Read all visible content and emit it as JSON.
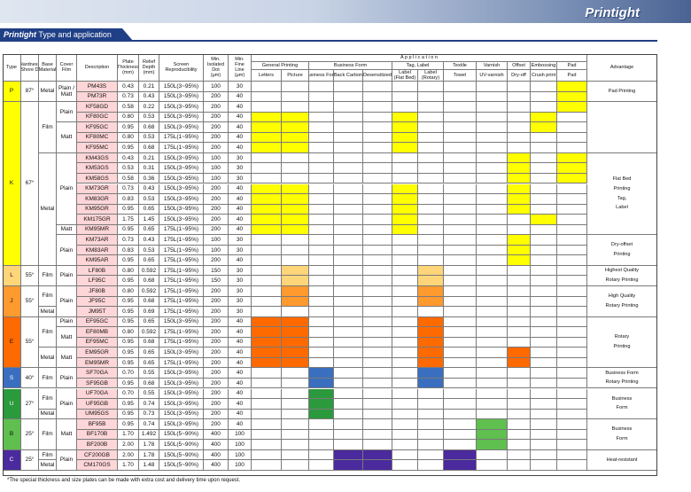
{
  "brand": "Printight",
  "title_suffix": "Type and application",
  "headers": {
    "type": "Type",
    "hardness": "Hardness\n(Shore D)",
    "base": "Base\nMaterial",
    "cover": "Cover\nFilm",
    "description": "Description",
    "thickness": "Plate\nThickness\n(mm)",
    "relief": "Relief\nDepth\n(mm)",
    "screen": "Screen\nReproducibility",
    "dot": "Min.\nIsolated\nDot\n(μm)",
    "line": "Min.\nFine\nLine\n(μm)",
    "application": "A p p l i c a t i o n",
    "advantage": "Advantage",
    "groups": [
      "General Printing",
      "Business Form",
      "Tag, Label",
      "Textile",
      "Varnish",
      "Offset",
      "Embossing",
      "Pad"
    ],
    "subs": [
      "Letters",
      "Picture",
      "Business Form",
      "Back Carbon",
      "Desensitized",
      "Label\n(Flat Bed)",
      "Label\n(Rotary)",
      "Towel",
      "UV-varnish",
      "Dry-off",
      "Crush print",
      "Pad"
    ]
  },
  "colors": {
    "yellow": "#ffff00",
    "lightorange": "#ffd57a",
    "orange": "#ff9a2e",
    "deeporange": "#ff6a00",
    "blue": "#3a6fc0",
    "green": "#2b9a3c",
    "lightgreen": "#5fbf4f",
    "purple": "#4a2a9c",
    "pink": "#ffd6d8"
  },
  "types": [
    {
      "label": "P",
      "hard": "87°",
      "rows": [
        0,
        1
      ],
      "color": "#ffff00"
    },
    {
      "label": "K",
      "hard": "67°",
      "rows": [
        2,
        17
      ],
      "color": "#ffff00"
    },
    {
      "label": "L",
      "hard": "55°",
      "rows": [
        18,
        19
      ],
      "color": "#ffd57a"
    },
    {
      "label": "J",
      "hard": "55°",
      "rows": [
        20,
        22
      ],
      "color": "#ff9a2e"
    },
    {
      "label": "E",
      "hard": "55°",
      "rows": [
        23,
        27
      ],
      "color": "#ff6a00"
    },
    {
      "label": "S",
      "hard": "40°",
      "rows": [
        28,
        29
      ],
      "color": "#3a6fc0"
    },
    {
      "label": "U",
      "hard": "27°",
      "rows": [
        30,
        32
      ],
      "color": "#2b9a3c"
    },
    {
      "label": "B",
      "hard": "25°",
      "rows": [
        33,
        35
      ],
      "color": "#5fbf4f"
    },
    {
      "label": "C",
      "hard": "25°",
      "rows": [
        36,
        37
      ],
      "color": "#4a2a9c"
    }
  ],
  "base_groups": [
    {
      "text": "Metal",
      "rows": [
        0,
        1
      ]
    },
    {
      "text": "Film",
      "rows": [
        2,
        6
      ]
    },
    {
      "text": "Metal",
      "rows": [
        7,
        17
      ]
    },
    {
      "text": "Film",
      "rows": [
        18,
        19
      ]
    },
    {
      "text": "Film",
      "rows": [
        20,
        21
      ]
    },
    {
      "text": "Metal",
      "rows": [
        22,
        22
      ]
    },
    {
      "text": "Film",
      "rows": [
        23,
        25
      ]
    },
    {
      "text": "Metal",
      "rows": [
        26,
        27
      ]
    },
    {
      "text": "Film",
      "rows": [
        28,
        29
      ]
    },
    {
      "text": "Film",
      "rows": [
        30,
        31
      ]
    },
    {
      "text": "Metal",
      "rows": [
        32,
        32
      ]
    },
    {
      "text": "Film",
      "rows": [
        33,
        35
      ]
    },
    {
      "text": "Film",
      "rows": [
        36,
        36
      ]
    },
    {
      "text": "Metal",
      "rows": [
        37,
        37
      ]
    }
  ],
  "cover_groups": [
    {
      "text": "Plain /\nMatt",
      "rows": [
        0,
        1
      ]
    },
    {
      "text": "Plain",
      "rows": [
        2,
        3
      ]
    },
    {
      "text": "Matt",
      "rows": [
        4,
        6
      ]
    },
    {
      "text": "Plain",
      "rows": [
        7,
        13
      ]
    },
    {
      "text": "Matt",
      "rows": [
        14,
        14
      ]
    },
    {
      "text": "Plain",
      "rows": [
        15,
        17
      ]
    },
    {
      "text": "Plain",
      "rows": [
        18,
        19
      ]
    },
    {
      "text": "Plain",
      "rows": [
        20,
        22
      ]
    },
    {
      "text": "Plain",
      "rows": [
        23,
        23
      ]
    },
    {
      "text": "Matt",
      "rows": [
        24,
        25
      ]
    },
    {
      "text": "Matt",
      "rows": [
        26,
        27
      ]
    },
    {
      "text": "Plain",
      "rows": [
        28,
        29
      ]
    },
    {
      "text": "Plain",
      "rows": [
        30,
        32
      ]
    },
    {
      "text": "Matt",
      "rows": [
        33,
        35
      ]
    },
    {
      "text": "Plain",
      "rows": [
        36,
        37
      ]
    }
  ],
  "advantage_groups": [
    {
      "text": "Pad Printing",
      "rows": [
        0,
        1
      ]
    },
    {
      "text": "",
      "rows": [
        2,
        6
      ]
    },
    {
      "text": "Flat Bed\nPrinting\nTag,\nLabel",
      "rows": [
        7,
        14
      ]
    },
    {
      "text": "Dry-offset\nPrinting",
      "rows": [
        15,
        17
      ]
    },
    {
      "text": "Highest Quality\nRotary Printing",
      "rows": [
        18,
        19
      ]
    },
    {
      "text": "High Quality\nRotary Printing",
      "rows": [
        20,
        22
      ]
    },
    {
      "text": "Rotary\nPrinting",
      "rows": [
        23,
        27
      ]
    },
    {
      "text": "Business Form\nRotary Printing",
      "rows": [
        28,
        29
      ]
    },
    {
      "text": "Business\nForm",
      "rows": [
        30,
        32
      ]
    },
    {
      "text": "Business\nForm",
      "rows": [
        33,
        35
      ]
    },
    {
      "text": "Heat-resistant",
      "rows": [
        36,
        37
      ]
    }
  ],
  "rows": [
    {
      "d": "PM43S",
      "t": "0.43",
      "r": "0.21",
      "s": "150L(3~95%)",
      "dot": "100",
      "line": "30",
      "fill": [
        11
      ]
    },
    {
      "d": "PM73R",
      "t": "0.73",
      "r": "0.43",
      "s": "150L(3~95%)",
      "dot": "200",
      "line": "40",
      "fill": [
        11
      ]
    },
    {
      "d": "KF58GD",
      "t": "0.58",
      "r": "0.22",
      "s": "150L(3~95%)",
      "dot": "200",
      "line": "40",
      "fill": [
        11
      ]
    },
    {
      "d": "KF80GC",
      "t": "0.80",
      "r": "0.53",
      "s": "150L(3~95%)",
      "dot": "200",
      "line": "40",
      "fill": [
        0,
        1,
        5,
        10
      ]
    },
    {
      "d": "KF95GC",
      "t": "0.95",
      "r": "0.68",
      "s": "150L(3~95%)",
      "dot": "200",
      "line": "40",
      "fill": [
        0,
        1,
        5,
        10
      ]
    },
    {
      "d": "KF80MC",
      "t": "0.80",
      "r": "0.53",
      "s": "175L(1~95%)",
      "dot": "200",
      "line": "40",
      "fill": [
        0,
        1,
        5
      ]
    },
    {
      "d": "KF95MC",
      "t": "0.95",
      "r": "0.68",
      "s": "175L(1~95%)",
      "dot": "200",
      "line": "40",
      "fill": [
        0,
        1,
        5
      ]
    },
    {
      "d": "KM43GS",
      "t": "0.43",
      "r": "0.21",
      "s": "150L(3~95%)",
      "dot": "100",
      "line": "30",
      "fill": [
        9,
        11
      ]
    },
    {
      "d": "KM53GS",
      "t": "0.53",
      "r": "0.31",
      "s": "150L(3~95%)",
      "dot": "100",
      "line": "30",
      "fill": [
        9,
        11
      ]
    },
    {
      "d": "KM58GS",
      "t": "0.58",
      "r": "0.36",
      "s": "150L(3~95%)",
      "dot": "100",
      "line": "30",
      "fill": [
        9,
        11
      ]
    },
    {
      "d": "KM73GR",
      "t": "0.73",
      "r": "0.43",
      "s": "150L(3~95%)",
      "dot": "200",
      "line": "40",
      "fill": [
        0,
        1,
        5,
        9
      ]
    },
    {
      "d": "KM83GR",
      "t": "0.83",
      "r": "0.53",
      "s": "150L(3~95%)",
      "dot": "200",
      "line": "40",
      "fill": [
        0,
        1,
        5,
        9
      ]
    },
    {
      "d": "KM95GR",
      "t": "0.95",
      "r": "0.65",
      "s": "150L(3~95%)",
      "dot": "200",
      "line": "40",
      "fill": [
        0,
        1,
        5,
        9
      ]
    },
    {
      "d": "KM175GR",
      "t": "1.75",
      "r": "1.45",
      "s": "150L(3~95%)",
      "dot": "200",
      "line": "40",
      "fill": [
        0,
        1,
        5,
        10
      ]
    },
    {
      "d": "KM95MR",
      "t": "0.95",
      "r": "0.65",
      "s": "175L(1~95%)",
      "dot": "200",
      "line": "40",
      "fill": [
        0,
        1,
        5
      ]
    },
    {
      "d": "KM73AR",
      "t": "0.73",
      "r": "0.43",
      "s": "175L(1~95%)",
      "dot": "100",
      "line": "30",
      "fill": [
        9
      ]
    },
    {
      "d": "KM83AR",
      "t": "0.83",
      "r": "0.53",
      "s": "175L(1~95%)",
      "dot": "100",
      "line": "30",
      "fill": [
        9
      ]
    },
    {
      "d": "KM95AR",
      "t": "0.95",
      "r": "0.65",
      "s": "175L(1~95%)",
      "dot": "200",
      "line": "40",
      "fill": [
        9
      ]
    },
    {
      "d": "LF80B",
      "t": "0.80",
      "r": "0.592",
      "s": "175L(1~95%)",
      "dot": "150",
      "line": "30",
      "fill": [
        1,
        6
      ]
    },
    {
      "d": "LF95C",
      "t": "0.95",
      "r": "0.68",
      "s": "175L(1~95%)",
      "dot": "150",
      "line": "30",
      "fill": [
        1,
        6
      ]
    },
    {
      "d": "JF80B",
      "t": "0.80",
      "r": "0.592",
      "s": "175L(1~95%)",
      "dot": "200",
      "line": "30",
      "fill": [
        1,
        6
      ]
    },
    {
      "d": "JF95C",
      "t": "0.95",
      "r": "0.68",
      "s": "175L(1~95%)",
      "dot": "200",
      "line": "30",
      "fill": [
        1,
        6
      ]
    },
    {
      "d": "JM95T",
      "t": "0.95",
      "r": "0.69",
      "s": "175L(1~95%)",
      "dot": "200",
      "line": "30",
      "fill": []
    },
    {
      "d": "EF95GC",
      "t": "0.95",
      "r": "0.65",
      "s": "150L(3~95%)",
      "dot": "200",
      "line": "40",
      "fill": [
        0,
        1,
        6
      ]
    },
    {
      "d": "EF80MB",
      "t": "0.80",
      "r": "0.592",
      "s": "175L(1~95%)",
      "dot": "200",
      "line": "40",
      "fill": [
        0,
        1,
        6
      ]
    },
    {
      "d": "EF95MC",
      "t": "0.95",
      "r": "0.68",
      "s": "175L(1~95%)",
      "dot": "200",
      "line": "40",
      "fill": [
        0,
        1,
        6
      ]
    },
    {
      "d": "EM95GR",
      "t": "0.95",
      "r": "0.65",
      "s": "150L(3~95%)",
      "dot": "200",
      "line": "40",
      "fill": [
        0,
        1,
        6,
        9
      ]
    },
    {
      "d": "EM95MR",
      "t": "0.95",
      "r": "0.65",
      "s": "175L(1~95%)",
      "dot": "200",
      "line": "40",
      "fill": [
        0,
        1,
        6,
        9
      ]
    },
    {
      "d": "SF70GA",
      "t": "0.70",
      "r": "0.55",
      "s": "150L(3~95%)",
      "dot": "200",
      "line": "40",
      "fill": [
        2,
        6
      ]
    },
    {
      "d": "SF95GB",
      "t": "0.95",
      "r": "0.68",
      "s": "150L(3~95%)",
      "dot": "200",
      "line": "40",
      "fill": [
        2,
        6
      ]
    },
    {
      "d": "UF70GA",
      "t": "0.70",
      "r": "0.55",
      "s": "150L(3~95%)",
      "dot": "200",
      "line": "40",
      "fill": [
        2
      ]
    },
    {
      "d": "UF95GB",
      "t": "0.95",
      "r": "0.74",
      "s": "150L(3~95%)",
      "dot": "200",
      "line": "40",
      "fill": [
        2
      ]
    },
    {
      "d": "UM95GS",
      "t": "0.95",
      "r": "0.73",
      "s": "150L(3~95%)",
      "dot": "200",
      "line": "40",
      "fill": [
        2
      ]
    },
    {
      "d": "BF95B",
      "t": "0.95",
      "r": "0.74",
      "s": "150L(3~95%)",
      "dot": "200",
      "line": "40",
      "fill": [
        8
      ]
    },
    {
      "d": "BF170B",
      "t": "1.70",
      "r": "1.492",
      "s": "150L(5~90%)",
      "dot": "400",
      "line": "100",
      "fill": [
        8
      ]
    },
    {
      "d": "BF200B",
      "t": "2.00",
      "r": "1.78",
      "s": "150L(5~90%)",
      "dot": "400",
      "line": "100",
      "fill": [
        8
      ]
    },
    {
      "d": "CF200GB",
      "t": "2.00",
      "r": "1.78",
      "s": "150L(5~90%)",
      "dot": "400",
      "line": "100",
      "fill": [
        3,
        4,
        7
      ]
    },
    {
      "d": "CM170GS",
      "t": "1.70",
      "r": "1.48",
      "s": "150L(5~90%)",
      "dot": "400",
      "line": "100",
      "fill": [
        3,
        4,
        7
      ]
    }
  ],
  "footnote": "*The special thickness and size plates can be made with extra cost and delivery time upon request."
}
